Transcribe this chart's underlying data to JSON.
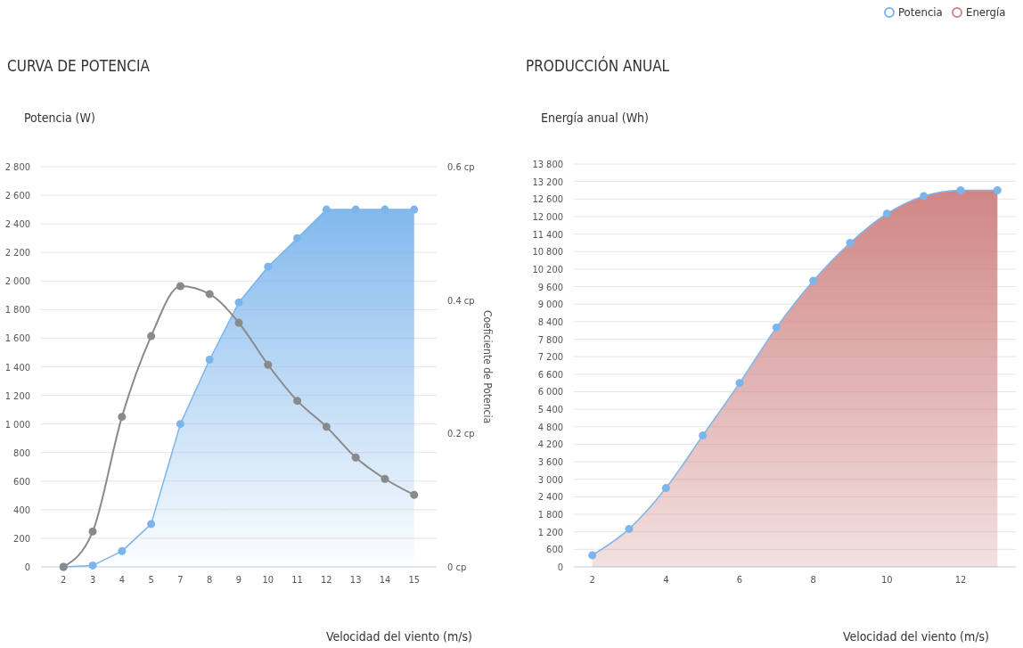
{
  "chart_data": [
    {
      "type": "area",
      "title": "CURVA DE POTENCIA",
      "ylabel": "Potencia (W)",
      "y2label": "Coeficiente de Potencia",
      "xlabel": "Velocidad del viento (m/s)",
      "categories": [
        "2",
        "3",
        "4",
        "5",
        "7",
        "8",
        "9",
        "10",
        "11",
        "12",
        "13",
        "14",
        "15"
      ],
      "series": [
        {
          "name": "Potencia",
          "color": "#7cb5ec",
          "values": [
            0,
            10,
            110,
            300,
            1000,
            1450,
            1850,
            2100,
            2300,
            2500,
            2500,
            2500,
            2500
          ]
        },
        {
          "type": "line",
          "axis": "y2",
          "color": "#8a8a8a",
          "values": [
            0,
            0.053,
            0.225,
            0.346,
            0.421,
            0.409,
            0.366,
            0.303,
            0.249,
            0.21,
            0.164,
            0.132,
            0.108
          ]
        }
      ],
      "ylim": [
        0,
        2800
      ],
      "yticks": [
        0,
        200,
        400,
        600,
        800,
        {
          "value": 1000,
          "label": "1 000"
        },
        {
          "value": 1200,
          "label": "1 200"
        },
        {
          "value": 1400,
          "label": "1 400"
        },
        {
          "value": 1600,
          "label": "1 600"
        },
        {
          "value": 1800,
          "label": "1 800"
        },
        {
          "value": 2000,
          "label": "2 000"
        },
        {
          "value": 2200,
          "label": "2 200"
        },
        {
          "value": 2400,
          "label": "2 400"
        },
        {
          "value": 2600,
          "label": "2 600"
        },
        {
          "value": 2800,
          "label": "2 800"
        }
      ],
      "y2lim": [
        0,
        0.6
      ],
      "y2ticks": [
        {
          "value": 0,
          "label": "0 cp"
        },
        {
          "value": 0.2,
          "label": "0.2 cp"
        },
        {
          "value": 0.4,
          "label": "0.4 cp"
        },
        {
          "value": 0.6,
          "label": "0.6 cp"
        }
      ],
      "grid": "y",
      "marker": "circle",
      "legend": "top right"
    },
    {
      "type": "area",
      "title": "PRODUCCIÓN ANUAL",
      "ylabel": "Energía anual (Wh)",
      "xlabel": "Velocidad del viento (m/s)",
      "x": [
        2,
        3,
        4,
        5,
        6,
        7,
        8,
        9,
        10,
        11,
        12,
        13
      ],
      "series": [
        {
          "name": "Energía",
          "color": "#d08686",
          "values": [
            400,
            1300,
            2700,
            4500,
            6300,
            8200,
            9800,
            11100,
            12100,
            12700,
            12900,
            12900
          ]
        }
      ],
      "xlim": [
        1.5,
        13.5
      ],
      "xticks": [
        2,
        4,
        6,
        8,
        10,
        12
      ],
      "ylim": [
        0,
        13800
      ],
      "yticks": [
        0,
        600,
        {
          "value": 1200,
          "label": "1 200"
        },
        {
          "value": 1800,
          "label": "1 800"
        },
        {
          "value": 2400,
          "label": "2 400"
        },
        {
          "value": 3000,
          "label": "3 000"
        },
        {
          "value": 3600,
          "label": "3 600"
        },
        {
          "value": 4200,
          "label": "4 200"
        },
        {
          "value": 4800,
          "label": "4 800"
        },
        {
          "value": 5400,
          "label": "5 400"
        },
        {
          "value": 6000,
          "label": "6 000"
        },
        {
          "value": 6600,
          "label": "6 600"
        },
        {
          "value": 7200,
          "label": "7 200"
        },
        {
          "value": 7800,
          "label": "7 800"
        },
        {
          "value": 8400,
          "label": "8 400"
        },
        {
          "value": 9000,
          "label": "9 000"
        },
        {
          "value": 9600,
          "label": "9 600"
        },
        {
          "value": 10200,
          "label": "10 200"
        },
        {
          "value": 10800,
          "label": "10 800"
        },
        {
          "value": 11400,
          "label": "11 400"
        },
        {
          "value": 12000,
          "label": "12 000"
        },
        {
          "value": 12600,
          "label": "12 600"
        },
        {
          "value": 13200,
          "label": "13 200"
        },
        {
          "value": 13800,
          "label": "13 800"
        }
      ],
      "grid": "y",
      "marker": "circle",
      "legend": "top right"
    }
  ]
}
